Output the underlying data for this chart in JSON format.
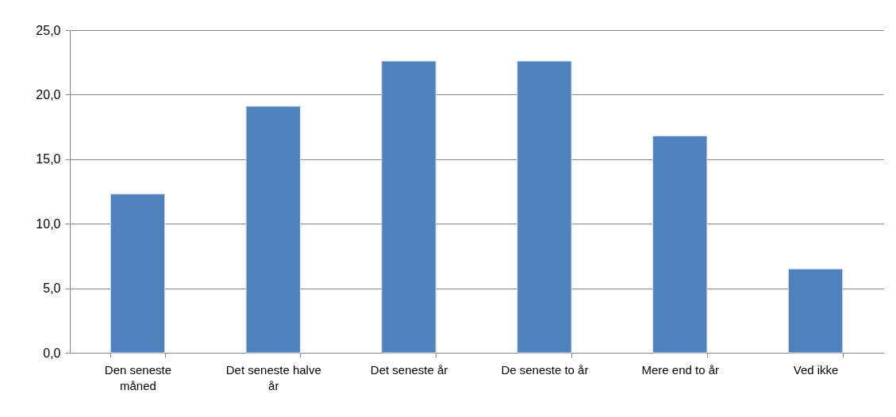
{
  "chart_data": {
    "type": "bar",
    "categories": [
      "Den seneste måned",
      "Det seneste halve år",
      "Det seneste år",
      "De seneste to år",
      "Mere end to år",
      "Ved ikke"
    ],
    "values": [
      12.3,
      19.1,
      22.6,
      22.6,
      16.8,
      6.5
    ],
    "color": "#4f81bd",
    "ylim": [
      0,
      25
    ],
    "yticks": [
      {
        "value": 0,
        "label": "0,0"
      },
      {
        "value": 5,
        "label": "5,0"
      },
      {
        "value": 10,
        "label": "10,0"
      },
      {
        "value": 15,
        "label": "15,0"
      },
      {
        "value": 20,
        "label": "20,0"
      },
      {
        "value": 25,
        "label": "25,0"
      }
    ],
    "grid": "y"
  }
}
